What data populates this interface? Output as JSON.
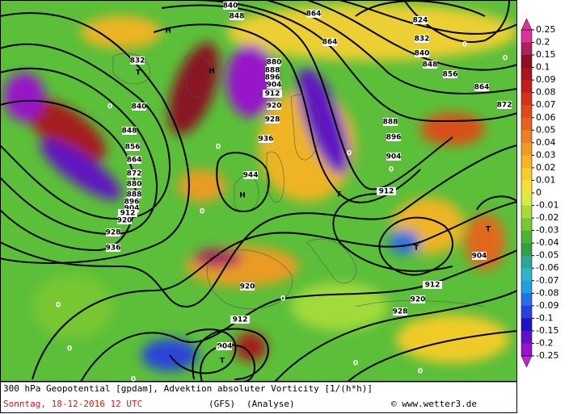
{
  "map": {
    "caption": "300 hPa Geopotential [gpdam], Advektion absoluter Vorticity [1/(h*h)]",
    "date": "Sonntag, 18-12-2016  12 UTC",
    "model": "(GFS)",
    "run": "(Analyse)",
    "source": "© www.wetter3.de",
    "colorbar": {
      "ticks": [
        0.25,
        0.2,
        0.15,
        0.1,
        0.09,
        0.08,
        0.07,
        0.06,
        0.05,
        0.04,
        0.03,
        0.02,
        0.01,
        0,
        -0.01,
        -0.02,
        -0.03,
        -0.04,
        -0.05,
        -0.06,
        -0.07,
        -0.08,
        -0.09,
        -0.1,
        -0.15,
        -0.2,
        -0.25
      ],
      "colors": [
        "#e0309a",
        "#b0205e",
        "#8c1020",
        "#a8141c",
        "#c21c1c",
        "#d8301a",
        "#e04a18",
        "#e8641a",
        "#ee8020",
        "#f29a22",
        "#f6b424",
        "#f8cc28",
        "#f4e030",
        "#d8ec40",
        "#a6dc3a",
        "#78c832",
        "#4cb430",
        "#30a044",
        "#2aa890",
        "#28b8c8",
        "#20a0e0",
        "#2070e8",
        "#2840e0",
        "#2010c8",
        "#6010c8",
        "#9a10d0",
        "#c820d8"
      ]
    },
    "contour_labels": [
      840,
      848,
      864,
      824,
      832,
      840,
      848,
      856,
      864,
      872,
      864,
      880,
      888,
      896,
      904,
      912,
      920,
      928,
      936,
      944,
      832,
      840,
      848,
      856,
      864,
      872,
      880,
      888,
      896,
      904,
      912,
      920,
      928,
      936,
      888,
      896,
      904,
      912,
      904,
      912,
      920,
      928,
      920,
      912,
      904
    ],
    "systems": [
      "H",
      "T",
      "H",
      "H",
      "T",
      "T",
      "T",
      "T"
    ],
    "zero_labels": [
      0,
      0,
      0,
      0,
      0,
      0,
      0,
      0,
      0,
      0,
      0,
      0,
      0,
      0
    ]
  }
}
